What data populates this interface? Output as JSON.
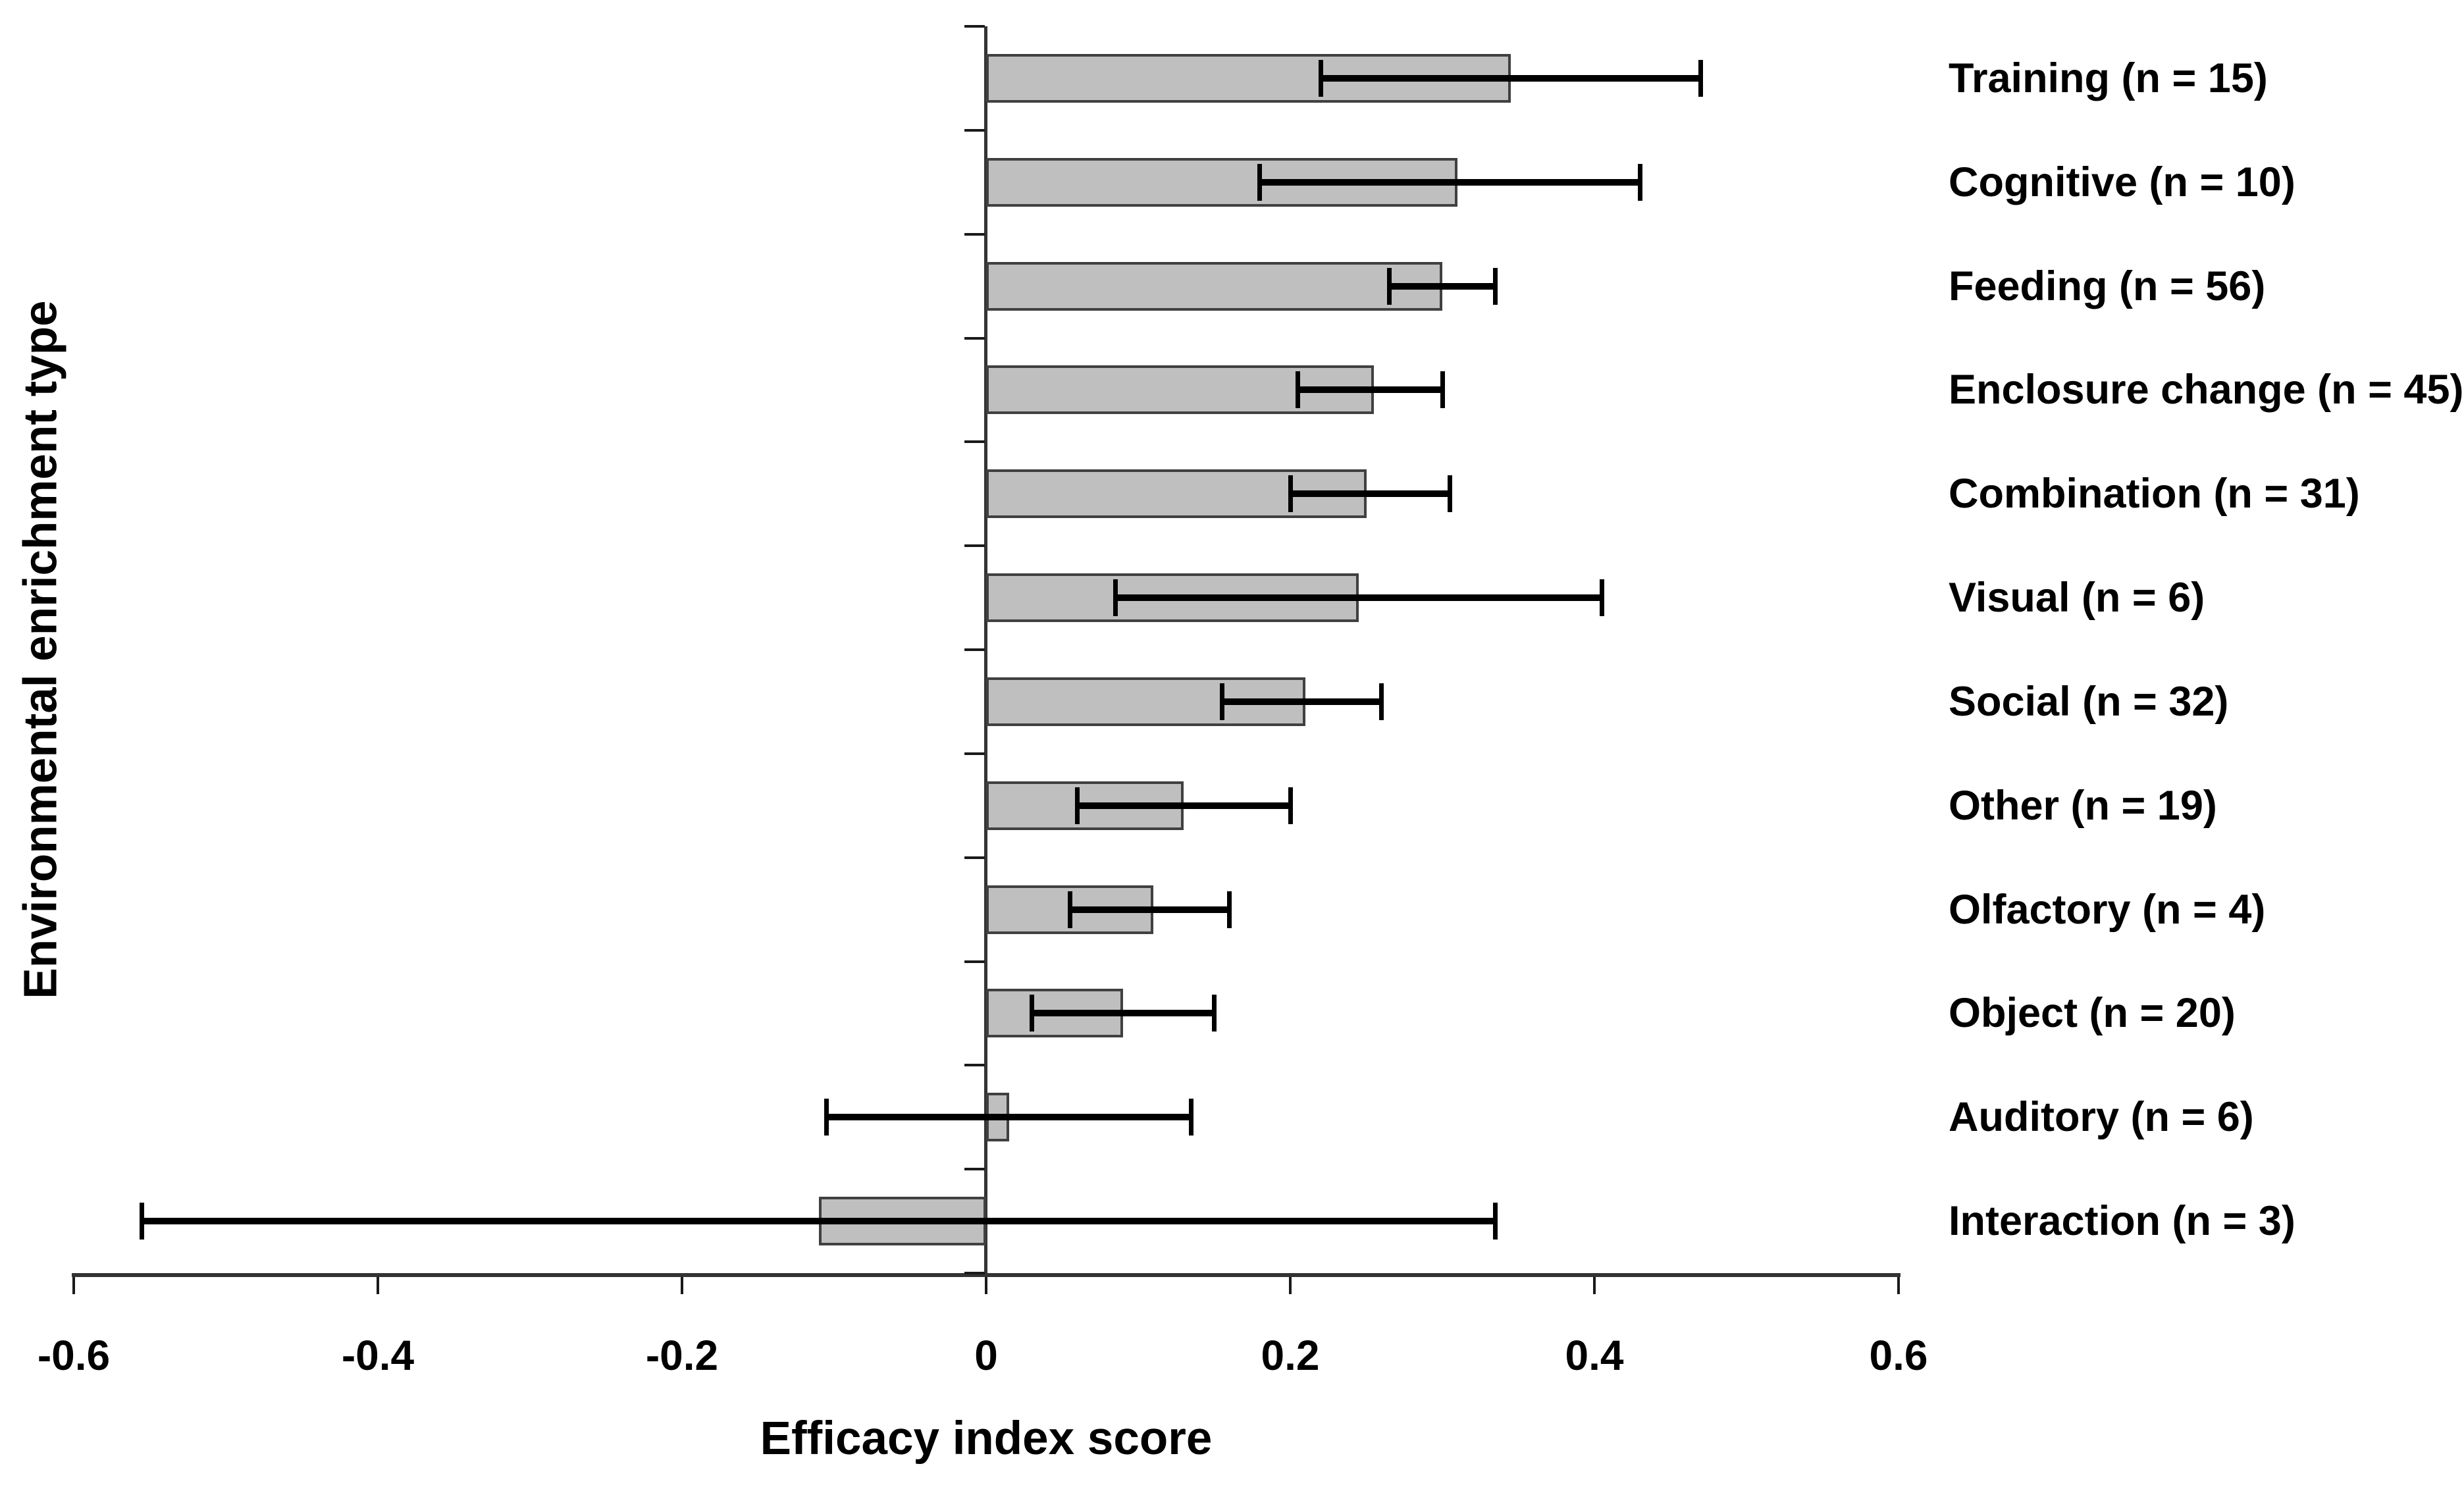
{
  "figure": {
    "background_color": "#ffffff",
    "text_color": "#000000"
  },
  "chart_data": {
    "type": "bar",
    "orientation": "horizontal",
    "title": "",
    "xlabel": "Efficacy index score",
    "ylabel": "Environmental enrichment type",
    "xlim": [
      -0.6,
      0.6
    ],
    "xticks": [
      -0.6,
      -0.4,
      -0.2,
      0,
      0.2,
      0.4,
      0.6
    ],
    "xtick_labels": [
      "-0.6",
      "-0.4",
      "-0.2",
      "0",
      "0.2",
      "0.4",
      "0.6"
    ],
    "grid": false,
    "legend": "none",
    "categories": [
      "Training (n = 15)",
      "Cognitive (n = 10)",
      "Feeding (n = 56)",
      "Enclosure change (n = 45)",
      "Combination (n = 31)",
      "Visual (n = 6)",
      "Social (n = 32)",
      "Other (n = 19)",
      "Olfactory (n = 4)",
      "Object (n = 20)",
      "Auditory (n = 6)",
      "Interaction (n = 3)"
    ],
    "values": [
      0.345,
      0.31,
      0.3,
      0.255,
      0.25,
      0.245,
      0.21,
      0.13,
      0.11,
      0.09,
      0.015,
      -0.11
    ],
    "error_low": [
      0.22,
      0.18,
      0.265,
      0.205,
      0.2,
      0.085,
      0.155,
      0.06,
      0.055,
      0.03,
      -0.105,
      -0.555
    ],
    "error_high": [
      0.47,
      0.43,
      0.335,
      0.3,
      0.305,
      0.405,
      0.26,
      0.2,
      0.16,
      0.15,
      0.135,
      0.335
    ],
    "bar_fill_color": "#bfbfbf",
    "bar_border_color": "#404040",
    "error_bar_color": "#000000",
    "axis_color": "#333333",
    "tick_color": "#1a1a1a"
  }
}
